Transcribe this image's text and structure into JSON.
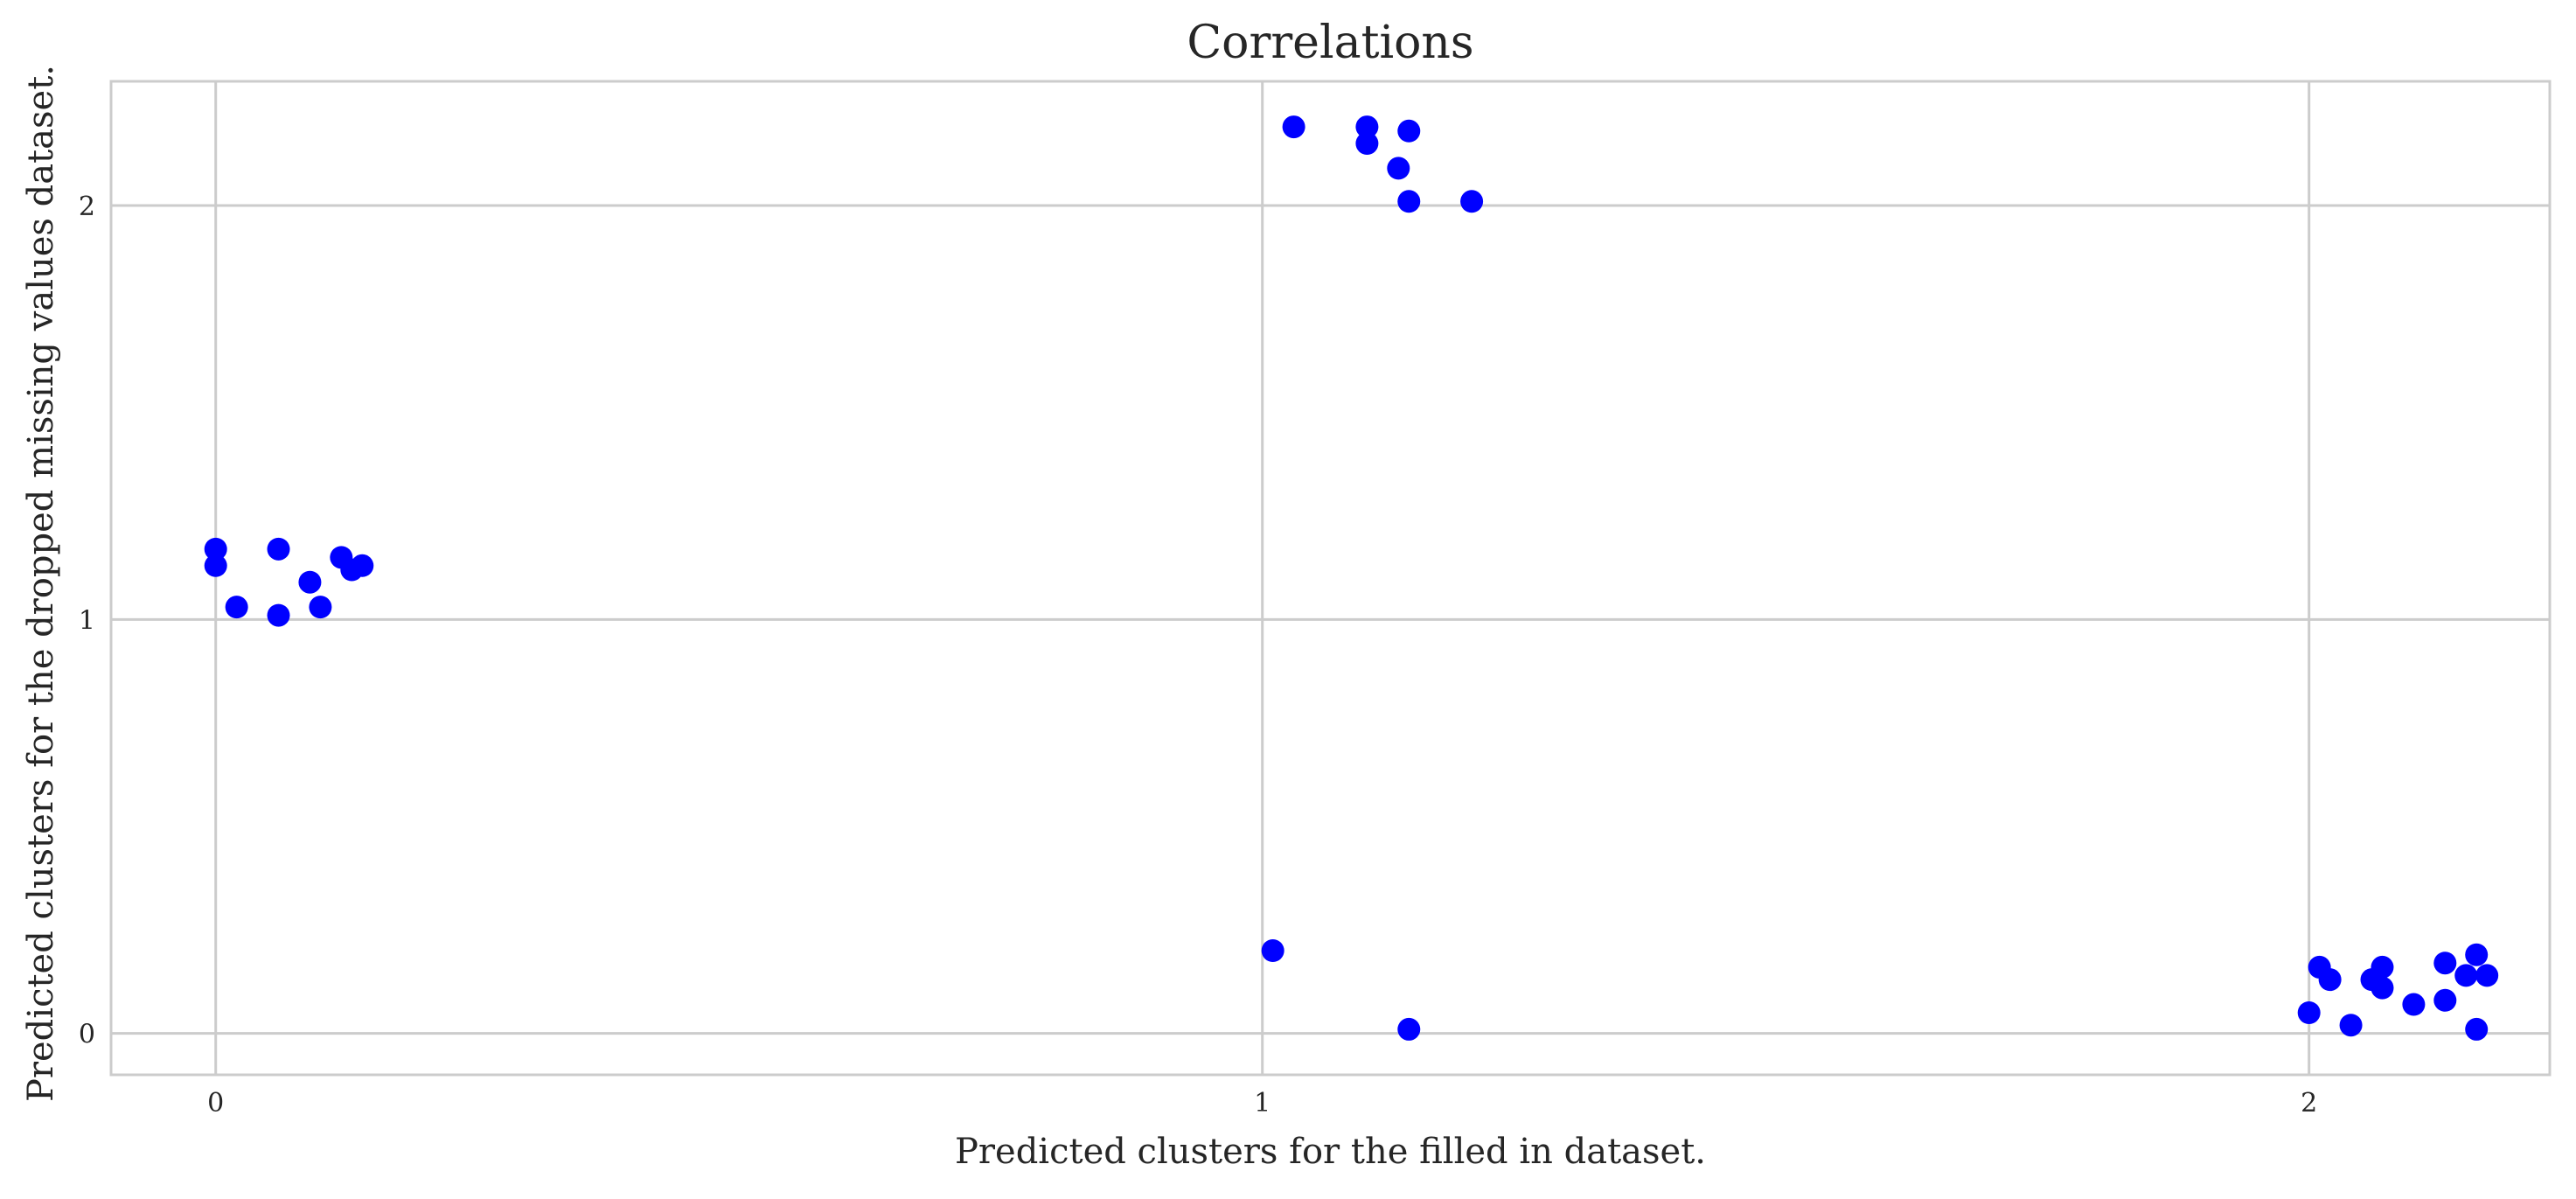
{
  "chart_data": {
    "type": "scatter",
    "title": "Correlations",
    "xlabel": "Predicted clusters for the filled in dataset.",
    "ylabel": "Predicted clusters for the dropped missing values dataset.",
    "xlim": [
      -0.1,
      2.23
    ],
    "ylim": [
      -0.1,
      2.3
    ],
    "xticks": [
      0,
      1,
      2
    ],
    "yticks": [
      0,
      1,
      2
    ],
    "grid": true,
    "marker_color": "#0000ff",
    "points": [
      {
        "x": 0.0,
        "y": 1.17
      },
      {
        "x": 0.0,
        "y": 1.13
      },
      {
        "x": 0.02,
        "y": 1.03
      },
      {
        "x": 0.06,
        "y": 1.01
      },
      {
        "x": 0.06,
        "y": 1.17
      },
      {
        "x": 0.09,
        "y": 1.09
      },
      {
        "x": 0.1,
        "y": 1.03
      },
      {
        "x": 0.12,
        "y": 1.15
      },
      {
        "x": 0.13,
        "y": 1.12
      },
      {
        "x": 0.14,
        "y": 1.13
      },
      {
        "x": 1.01,
        "y": 0.2
      },
      {
        "x": 1.14,
        "y": 0.01
      },
      {
        "x": 1.03,
        "y": 2.19
      },
      {
        "x": 1.1,
        "y": 2.19
      },
      {
        "x": 1.1,
        "y": 2.15
      },
      {
        "x": 1.14,
        "y": 2.18
      },
      {
        "x": 1.13,
        "y": 2.09
      },
      {
        "x": 1.14,
        "y": 2.01
      },
      {
        "x": 1.2,
        "y": 2.01
      },
      {
        "x": 2.0,
        "y": 0.05
      },
      {
        "x": 2.01,
        "y": 0.16
      },
      {
        "x": 2.02,
        "y": 0.13
      },
      {
        "x": 2.04,
        "y": 0.02
      },
      {
        "x": 2.06,
        "y": 0.13
      },
      {
        "x": 2.07,
        "y": 0.16
      },
      {
        "x": 2.07,
        "y": 0.11
      },
      {
        "x": 2.1,
        "y": 0.07
      },
      {
        "x": 2.13,
        "y": 0.08
      },
      {
        "x": 2.13,
        "y": 0.17
      },
      {
        "x": 2.15,
        "y": 0.14
      },
      {
        "x": 2.16,
        "y": 0.19
      },
      {
        "x": 2.17,
        "y": 0.14
      },
      {
        "x": 2.16,
        "y": 0.01
      }
    ]
  }
}
